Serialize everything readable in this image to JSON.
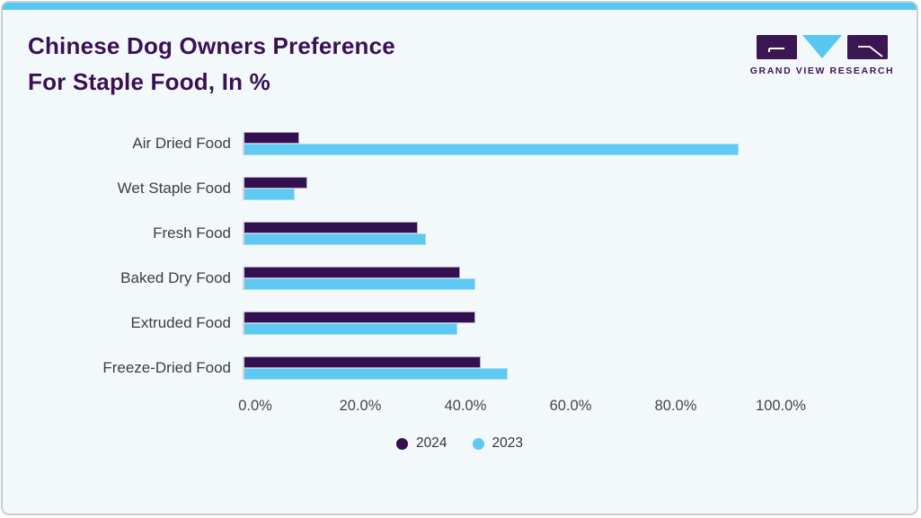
{
  "header": {
    "title_line1": "Chinese Dog Owners Preference",
    "title_line2": "For Staple Food, In %",
    "logo_text": "GRAND VIEW RESEARCH"
  },
  "colors": {
    "accent_blue": "#55c7f0",
    "bar_2024_purple": "#331150",
    "bar_2023_blue": "#5ec9f2",
    "title_purple": "#3a1055",
    "card_background": "#f3f8fb",
    "card_border": "#c9cfd7",
    "axis_line": "#d2d5da"
  },
  "chart_data": {
    "type": "bar",
    "orientation": "horizontal",
    "title": "Chinese Dog Owners Preference For Staple Food, In %",
    "categories": [
      "Air Dried Food",
      "Wet Staple Food",
      "Fresh Food",
      "Baked Dry Food",
      "Extruded Food",
      "Freeze-Dried Food"
    ],
    "series": [
      {
        "name": "2024",
        "color": "#331150",
        "values": [
          10.5,
          12,
          33,
          41,
          44,
          45
        ]
      },
      {
        "name": "2023",
        "color": "#5ec9f2",
        "values": [
          94,
          9.5,
          34.5,
          44,
          40.5,
          50
        ]
      }
    ],
    "xlabel": "",
    "ylabel": "",
    "xlim": [
      0,
      100
    ],
    "x_ticks": [
      "0.0%",
      "20.0%",
      "40.0%",
      "60.0%",
      "80.0%",
      "100.0%"
    ],
    "grid": false,
    "legend_position": "bottom"
  }
}
